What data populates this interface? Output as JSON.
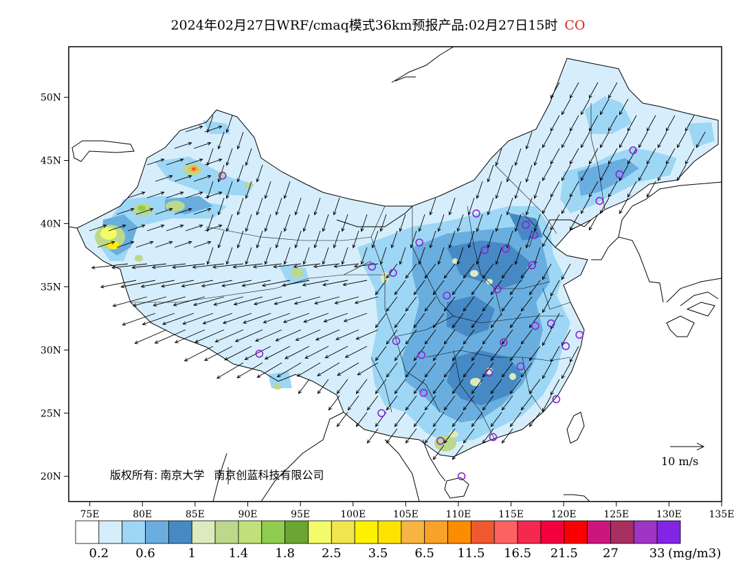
{
  "title": {
    "main": "2024年02月27日WRF/cmaq模式36km预报产品:02月27日15时",
    "species": "CO"
  },
  "axes": {
    "lon_ticks": [
      "75E",
      "80E",
      "85E",
      "90E",
      "95E",
      "100E",
      "105E",
      "110E",
      "115E",
      "120E",
      "125E",
      "130E",
      "135E"
    ],
    "lat_ticks": [
      "50N",
      "45N",
      "40N",
      "35N",
      "30N",
      "25N",
      "20N"
    ],
    "lon_range": [
      73,
      135
    ],
    "lat_range": [
      18,
      54
    ]
  },
  "copyright": {
    "prefix": "版权所有:",
    "org1": "南京大学",
    "org2": "南京创蓝科技有限公司"
  },
  "wind_scale": {
    "label": "10 m/s"
  },
  "colorbar": {
    "colors": [
      "#ffffff",
      "#d6eefb",
      "#9ed7f5",
      "#6aaedf",
      "#4789c4",
      "#dcebbd",
      "#bcd88a",
      "#c1e07a",
      "#8fcc4f",
      "#6aa631",
      "#f3fb68",
      "#f1e54e",
      "#fef200",
      "#fce300",
      "#f7b443",
      "#f8a227",
      "#fc8c00",
      "#f0582e",
      "#fd6262",
      "#f5284f",
      "#f5003f",
      "#fb0000",
      "#cd167d",
      "#a82f5f",
      "#9f34c5",
      "#8124e3"
    ],
    "labels": [
      "0.2",
      "0.6",
      "1",
      "1.4",
      "1.8",
      "2.5",
      "3.5",
      "6.5",
      "11.5",
      "16.5",
      "21.5",
      "27",
      "33"
    ],
    "unit": "(mg/m3)"
  },
  "stations": [
    {
      "lon": 126.6,
      "lat": 45.8
    },
    {
      "lon": 125.3,
      "lat": 43.9
    },
    {
      "lon": 123.4,
      "lat": 41.8
    },
    {
      "lon": 116.4,
      "lat": 39.9
    },
    {
      "lon": 117.2,
      "lat": 39.1
    },
    {
      "lon": 111.7,
      "lat": 40.8
    },
    {
      "lon": 114.5,
      "lat": 38.0
    },
    {
      "lon": 112.5,
      "lat": 37.9
    },
    {
      "lon": 117.0,
      "lat": 36.7
    },
    {
      "lon": 106.3,
      "lat": 38.5
    },
    {
      "lon": 103.8,
      "lat": 36.1
    },
    {
      "lon": 101.8,
      "lat": 36.6
    },
    {
      "lon": 113.7,
      "lat": 34.8
    },
    {
      "lon": 108.9,
      "lat": 34.3
    },
    {
      "lon": 117.3,
      "lat": 31.9
    },
    {
      "lon": 118.8,
      "lat": 32.1
    },
    {
      "lon": 121.5,
      "lat": 31.2
    },
    {
      "lon": 120.2,
      "lat": 30.3
    },
    {
      "lon": 114.3,
      "lat": 30.6
    },
    {
      "lon": 104.1,
      "lat": 30.7
    },
    {
      "lon": 106.5,
      "lat": 29.6
    },
    {
      "lon": 112.9,
      "lat": 28.2
    },
    {
      "lon": 115.9,
      "lat": 28.7
    },
    {
      "lon": 106.7,
      "lat": 26.6
    },
    {
      "lon": 119.3,
      "lat": 26.1
    },
    {
      "lon": 102.7,
      "lat": 25.0
    },
    {
      "lon": 108.3,
      "lat": 22.8
    },
    {
      "lon": 113.3,
      "lat": 23.1
    },
    {
      "lon": 110.3,
      "lat": 20.0
    },
    {
      "lon": 91.1,
      "lat": 29.7
    },
    {
      "lon": 87.6,
      "lat": 43.8
    }
  ]
}
